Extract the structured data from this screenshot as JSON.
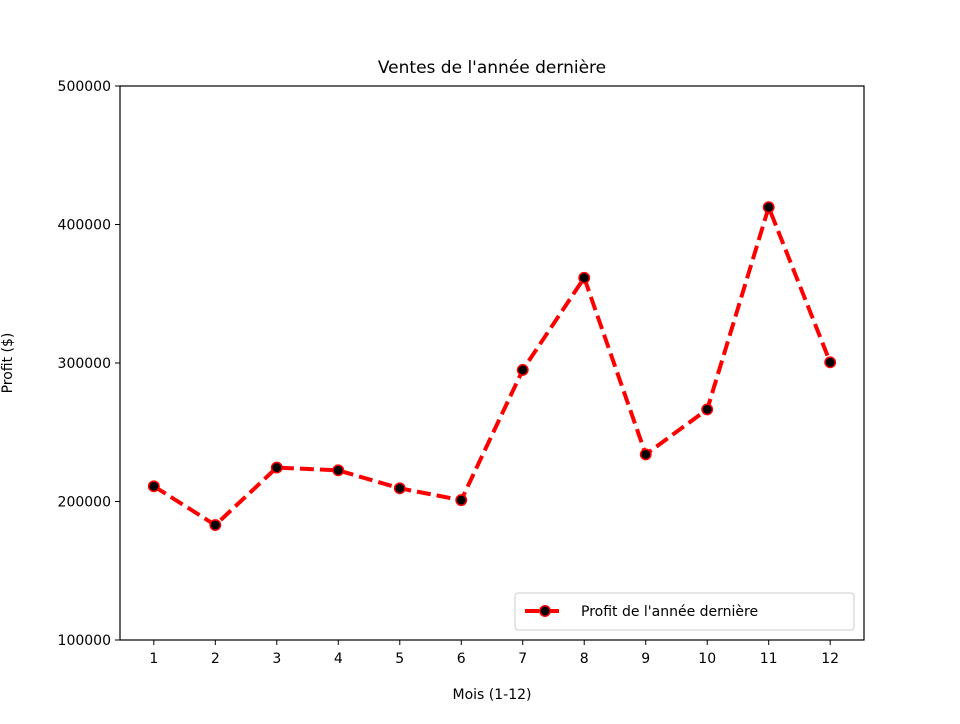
{
  "chart_data": {
    "type": "line",
    "title": "Ventes de l'année dernière",
    "xlabel": "Mois (1-12)",
    "ylabel": "Profit ($)",
    "x": [
      1,
      2,
      3,
      4,
      5,
      6,
      7,
      8,
      9,
      10,
      11,
      12
    ],
    "xticks": [
      "1",
      "2",
      "3",
      "4",
      "5",
      "6",
      "7",
      "8",
      "9",
      "10",
      "11",
      "12"
    ],
    "yticks": [
      "100000",
      "200000",
      "300000",
      "400000",
      "500000"
    ],
    "xlim": [
      0.45,
      12.55
    ],
    "ylim": [
      100000,
      500000
    ],
    "series": [
      {
        "name": "Profit de l'année dernière",
        "values": [
          211000,
          183000,
          224500,
          222500,
          209500,
          201000,
          295000,
          361500,
          234000,
          266500,
          412500,
          300500
        ],
        "line_color": "#ff0000",
        "line_style": "dashed",
        "marker_face_color": "#000000",
        "marker_edge_color": "#ff0000"
      }
    ],
    "grid": false,
    "legend_position": "lower-right"
  }
}
